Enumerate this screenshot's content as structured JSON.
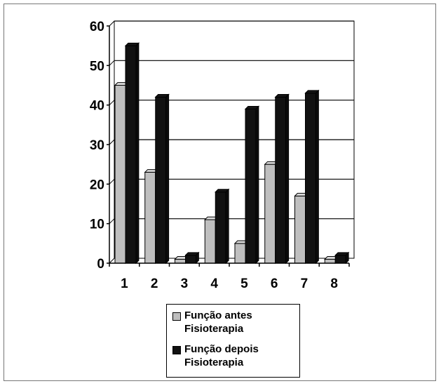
{
  "chart_data": {
    "type": "bar",
    "categories": [
      "1",
      "2",
      "3",
      "4",
      "5",
      "6",
      "7",
      "8"
    ],
    "series": [
      {
        "name": "Função antes Fisioterapia",
        "values": [
          45,
          23,
          1,
          11,
          5,
          25,
          17,
          1
        ],
        "color": "#bfbfbf"
      },
      {
        "name": "Função depois Fisioterapia",
        "values": [
          55,
          42,
          2,
          18,
          39,
          42,
          43,
          2
        ],
        "color": "#111111"
      }
    ],
    "y_ticks": [
      "0",
      "10",
      "20",
      "30",
      "40",
      "50",
      "60"
    ],
    "ylim": [
      0,
      60
    ],
    "grid": true,
    "legend_position": "bottom",
    "title": "",
    "xlabel": "",
    "ylabel": ""
  },
  "legend": {
    "items": [
      {
        "line1": "Função antes",
        "line2": "Fisioterapia",
        "color": "#bfbfbf"
      },
      {
        "line1": "Função depois",
        "line2": "Fisioterapia",
        "color": "#111111"
      }
    ]
  }
}
